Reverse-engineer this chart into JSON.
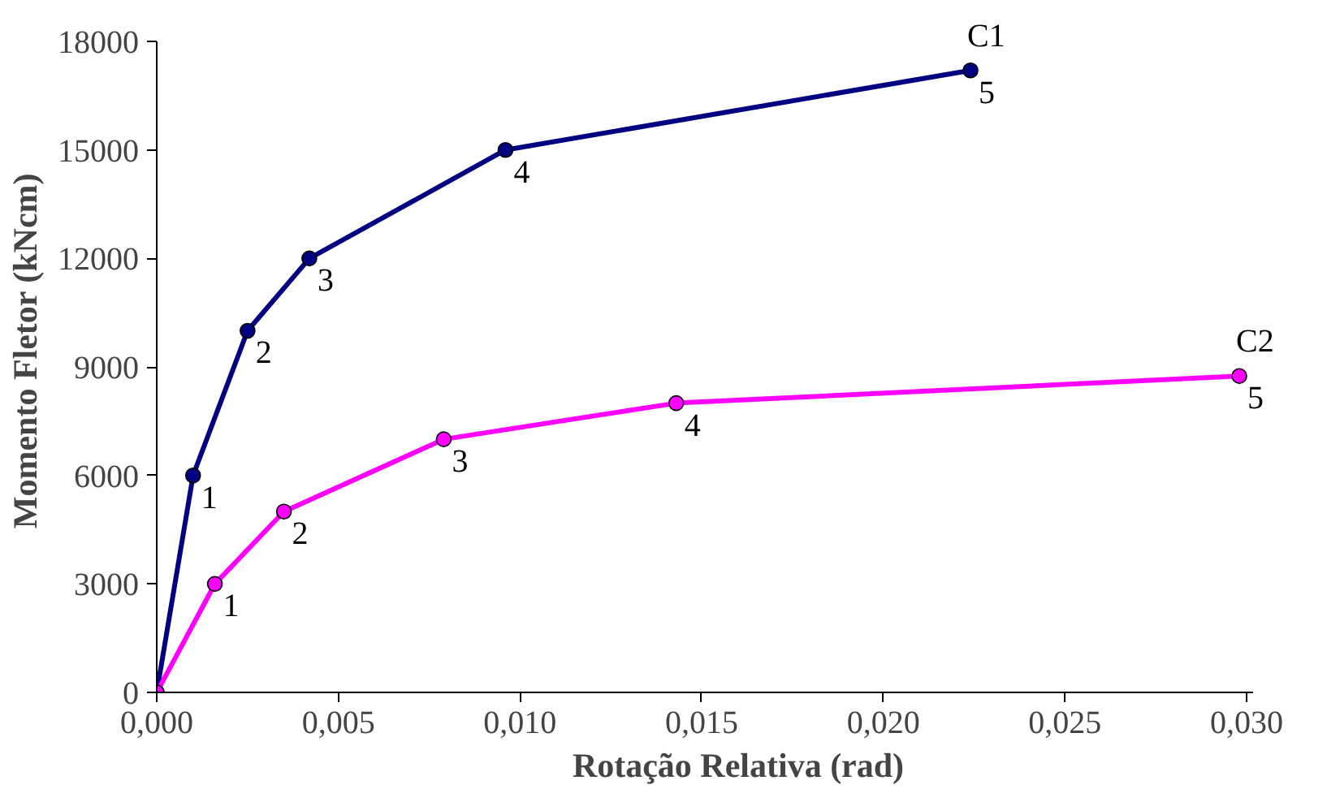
{
  "chart_data": {
    "type": "line",
    "xlabel": "Rotação Relativa (rad)",
    "ylabel": "Momento Fletor (kNcm)",
    "xlim": [
      0,
      0.0302
    ],
    "ylim": [
      0,
      18000
    ],
    "xticks": [
      {
        "value": 0,
        "label": "0,000"
      },
      {
        "value": 0.005,
        "label": "0,005"
      },
      {
        "value": 0.01,
        "label": "0,010"
      },
      {
        "value": 0.015,
        "label": "0,015"
      },
      {
        "value": 0.02,
        "label": "0,020"
      },
      {
        "value": 0.025,
        "label": "0,025"
      },
      {
        "value": 0.03,
        "label": "0,030"
      }
    ],
    "yticks": [
      0,
      3000,
      6000,
      9000,
      12000,
      15000,
      18000
    ],
    "grid": false,
    "marker": "circle",
    "line_style": "solid",
    "series": [
      {
        "name": "C1",
        "color": "#000080",
        "x": [
          0,
          0.001,
          0.0025,
          0.0042,
          0.0096,
          0.0224
        ],
        "values": [
          0,
          6000,
          10000,
          12000,
          15000,
          17200
        ]
      },
      {
        "name": "C2",
        "color": "#ff00ff",
        "x": [
          0,
          0.0016,
          0.0035,
          0.0079,
          0.0143,
          0.0298
        ],
        "values": [
          0,
          3000,
          5000,
          7000,
          8000,
          8750
        ]
      }
    ],
    "annotations": [
      {
        "text": "1",
        "x": 0.001,
        "y": 6000
      },
      {
        "text": "2",
        "x": 0.0025,
        "y": 10000
      },
      {
        "text": "3",
        "x": 0.0042,
        "y": 12000
      },
      {
        "text": "4",
        "x": 0.0096,
        "y": 15000
      },
      {
        "text": "5",
        "x": 0.0224,
        "y": 17200
      },
      {
        "text": "1",
        "x": 0.0016,
        "y": 3000
      },
      {
        "text": "2",
        "x": 0.0035,
        "y": 5000
      },
      {
        "text": "3",
        "x": 0.0079,
        "y": 7000
      },
      {
        "text": "4",
        "x": 0.0143,
        "y": 8000
      },
      {
        "text": "5",
        "x": 0.0298,
        "y": 8750
      }
    ]
  }
}
